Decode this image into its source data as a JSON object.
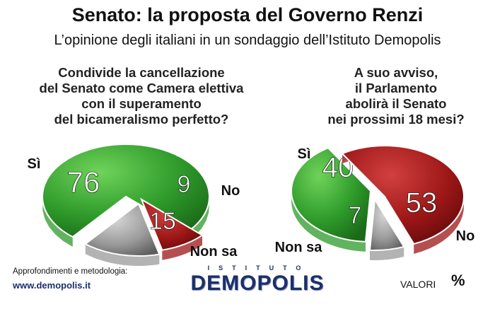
{
  "title": "Senato: la proposta del Governo Renzi",
  "subtitle": "L’opinione degli italiani in un sondaggio dell’Istituto Demopolis",
  "colors": {
    "green": "#2e9a2a",
    "red": "#9c1616",
    "gray": "#9a9a9a"
  },
  "chart_data": [
    {
      "type": "pie",
      "question_lines": [
        "Condivide la cancellazione",
        "del Senato come Camera elettiva",
        "con il superamento",
        "del bicameralismo perfetto?"
      ],
      "slices": [
        {
          "label": "Sì",
          "value": 76,
          "color": "#2e9a2a"
        },
        {
          "label": "No",
          "value": 9,
          "color": "#9c1616"
        },
        {
          "label": "Non sa",
          "value": 15,
          "color": "#9a9a9a"
        }
      ]
    },
    {
      "type": "pie",
      "question_lines": [
        "A suo avviso,",
        "il Parlamento",
        "abolirà il Senato",
        "nei prossimi 18 mesi?"
      ],
      "slices": [
        {
          "label": "Sì",
          "value": 40,
          "color": "#2e9a2a"
        },
        {
          "label": "No",
          "value": 53,
          "color": "#9c1616"
        },
        {
          "label": "Non sa",
          "value": 7,
          "color": "#9a9a9a"
        }
      ]
    }
  ],
  "footer": {
    "method_label": "Approfondimenti e metodologia:",
    "url": "www.demopolis.it",
    "brand_top": "ISTITUTO",
    "brand": "DEMOPOLIS",
    "valori": "VALORI",
    "percent": "%"
  }
}
